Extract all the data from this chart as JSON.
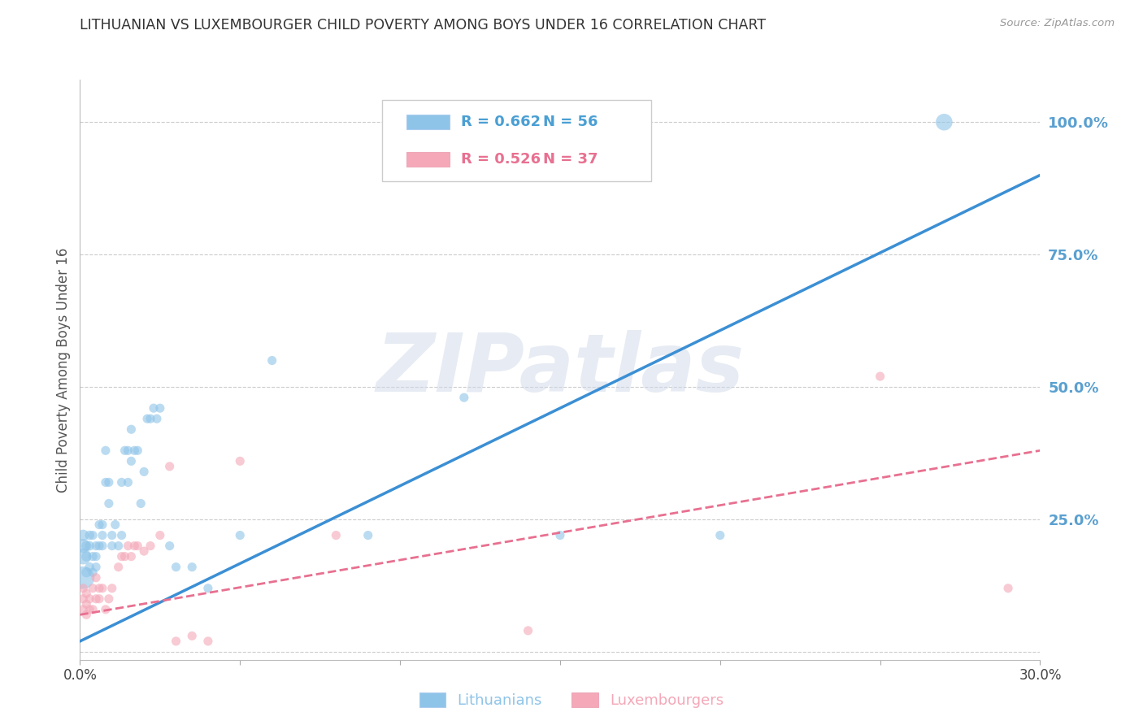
{
  "title": "LITHUANIAN VS LUXEMBOURGER CHILD POVERTY AMONG BOYS UNDER 16 CORRELATION CHART",
  "source": "Source: ZipAtlas.com",
  "ylabel": "Child Poverty Among Boys Under 16",
  "xlim": [
    0.0,
    0.3
  ],
  "ylim": [
    -0.015,
    1.08
  ],
  "xticks": [
    0.0,
    0.05,
    0.1,
    0.15,
    0.2,
    0.25,
    0.3
  ],
  "xticklabels": [
    "0.0%",
    "",
    "",
    "",
    "",
    "",
    "30.0%"
  ],
  "yticks_right": [
    0.0,
    0.25,
    0.5,
    0.75,
    1.0
  ],
  "ytick_right_labels": [
    "",
    "25.0%",
    "50.0%",
    "75.0%",
    "100.0%"
  ],
  "legend_blue_r": "R = 0.662",
  "legend_blue_n": "N = 56",
  "legend_pink_r": "R = 0.526",
  "legend_pink_n": "N = 37",
  "blue_scatter_color": "#8ec4e8",
  "blue_line_color": "#3b8fd4",
  "pink_scatter_color": "#f4a8b8",
  "pink_line_color": "#e87090",
  "legend_r_color": "#4a9fd4",
  "legend_n_color": "#4a9fd4",
  "legend_pink_r_color": "#e87090",
  "legend_pink_n_color": "#e87090",
  "watermark": "ZIPatlas",
  "background": "#ffffff",
  "grid_color": "#cccccc",
  "title_color": "#333333",
  "right_tick_color": "#5aa0d0",
  "blue_scatter_x": [
    0.001,
    0.001,
    0.001,
    0.001,
    0.002,
    0.002,
    0.002,
    0.003,
    0.003,
    0.003,
    0.004,
    0.004,
    0.004,
    0.005,
    0.005,
    0.005,
    0.006,
    0.006,
    0.007,
    0.007,
    0.007,
    0.008,
    0.008,
    0.009,
    0.009,
    0.01,
    0.01,
    0.011,
    0.012,
    0.013,
    0.013,
    0.014,
    0.015,
    0.015,
    0.016,
    0.016,
    0.017,
    0.018,
    0.019,
    0.02,
    0.021,
    0.022,
    0.023,
    0.024,
    0.025,
    0.028,
    0.03,
    0.035,
    0.04,
    0.05,
    0.06,
    0.09,
    0.12,
    0.15,
    0.2,
    0.27
  ],
  "blue_scatter_y": [
    0.14,
    0.18,
    0.2,
    0.22,
    0.15,
    0.18,
    0.2,
    0.16,
    0.2,
    0.22,
    0.15,
    0.18,
    0.22,
    0.16,
    0.2,
    0.18,
    0.2,
    0.24,
    0.2,
    0.22,
    0.24,
    0.32,
    0.38,
    0.28,
    0.32,
    0.2,
    0.22,
    0.24,
    0.2,
    0.22,
    0.32,
    0.38,
    0.32,
    0.38,
    0.36,
    0.42,
    0.38,
    0.38,
    0.28,
    0.34,
    0.44,
    0.44,
    0.46,
    0.44,
    0.46,
    0.2,
    0.16,
    0.16,
    0.12,
    0.22,
    0.55,
    0.22,
    0.48,
    0.22,
    0.22,
    1.0
  ],
  "blue_scatter_sizes": [
    400,
    200,
    150,
    100,
    80,
    80,
    80,
    70,
    70,
    70,
    65,
    65,
    65,
    65,
    65,
    65,
    65,
    65,
    65,
    65,
    65,
    65,
    65,
    65,
    65,
    65,
    65,
    65,
    65,
    65,
    65,
    65,
    65,
    65,
    65,
    65,
    65,
    65,
    65,
    65,
    65,
    65,
    65,
    65,
    65,
    65,
    65,
    65,
    65,
    65,
    65,
    65,
    65,
    65,
    65,
    220
  ],
  "pink_scatter_x": [
    0.001,
    0.001,
    0.001,
    0.002,
    0.002,
    0.002,
    0.003,
    0.003,
    0.004,
    0.004,
    0.005,
    0.005,
    0.006,
    0.006,
    0.007,
    0.008,
    0.009,
    0.01,
    0.012,
    0.013,
    0.014,
    0.015,
    0.016,
    0.017,
    0.018,
    0.02,
    0.022,
    0.025,
    0.028,
    0.03,
    0.035,
    0.04,
    0.05,
    0.08,
    0.14,
    0.25,
    0.29
  ],
  "pink_scatter_y": [
    0.08,
    0.1,
    0.12,
    0.07,
    0.09,
    0.11,
    0.08,
    0.1,
    0.08,
    0.12,
    0.1,
    0.14,
    0.1,
    0.12,
    0.12,
    0.08,
    0.1,
    0.12,
    0.16,
    0.18,
    0.18,
    0.2,
    0.18,
    0.2,
    0.2,
    0.19,
    0.2,
    0.22,
    0.35,
    0.02,
    0.03,
    0.02,
    0.36,
    0.22,
    0.04,
    0.52,
    0.12
  ],
  "pink_scatter_sizes": [
    65,
    65,
    65,
    65,
    65,
    65,
    65,
    65,
    65,
    65,
    65,
    65,
    65,
    65,
    65,
    65,
    65,
    65,
    65,
    65,
    65,
    65,
    65,
    65,
    65,
    65,
    65,
    65,
    65,
    65,
    65,
    65,
    65,
    65,
    65,
    65,
    65
  ],
  "blue_line_x": [
    0.0,
    0.3
  ],
  "blue_line_y": [
    0.02,
    0.9
  ],
  "pink_line_x": [
    0.0,
    0.3
  ],
  "pink_line_y": [
    0.07,
    0.38
  ]
}
